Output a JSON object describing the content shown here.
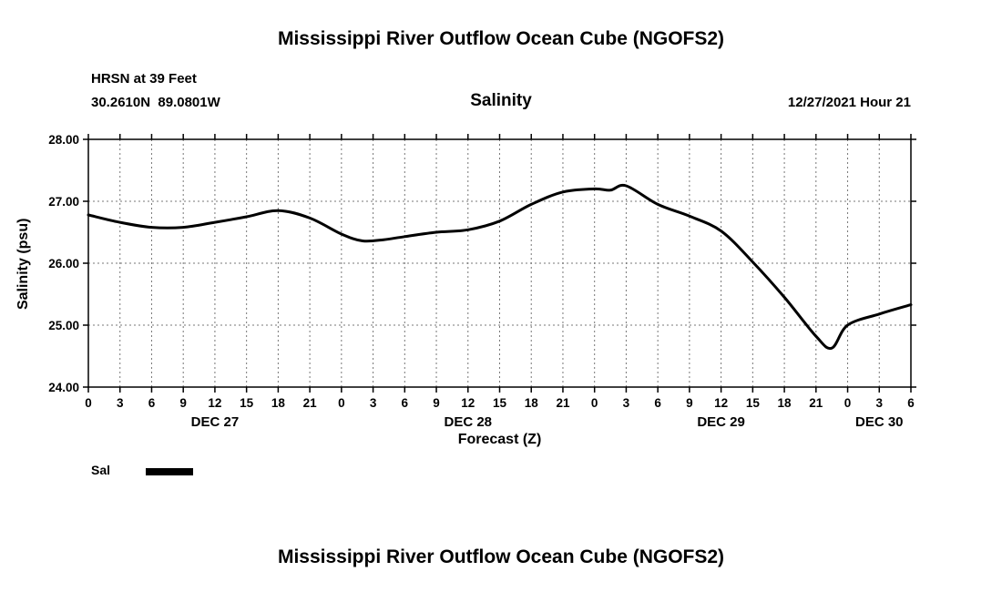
{
  "page": {
    "title_top": "Mississippi River Outflow Ocean Cube (NGOFS2)",
    "title_bottom": "Mississippi River Outflow Ocean Cube (NGOFS2)"
  },
  "subheader": {
    "station": "HRSN at 39 Feet",
    "coordinates": "30.2610N  89.0801W",
    "variable_label": "Salinity",
    "timestamp": "12/27/2021 Hour 21"
  },
  "legend": {
    "label": "Sal"
  },
  "chart_data": {
    "type": "line",
    "title": "Salinity",
    "xlabel": "Forecast (Z)",
    "ylabel": "Salinity (psu)",
    "ylim": [
      24,
      28
    ],
    "xlim": [
      0,
      78
    ],
    "grid": true,
    "legend_position": "below-left",
    "line_color": "#000000",
    "grid_color": "#777777",
    "y_tick_values": [
      24,
      25,
      26,
      27,
      28
    ],
    "y_tick_labels": [
      "24.00",
      "25.00",
      "26.00",
      "27.00",
      "28.00"
    ],
    "x_tick_values": [
      0,
      3,
      6,
      9,
      12,
      15,
      18,
      21,
      24,
      27,
      30,
      33,
      36,
      39,
      42,
      45,
      48,
      51,
      54,
      57,
      60,
      63,
      66,
      69,
      72,
      75,
      78
    ],
    "x_tick_labels": [
      "0",
      "3",
      "6",
      "9",
      "12",
      "15",
      "18",
      "21",
      "0",
      "3",
      "6",
      "9",
      "12",
      "15",
      "18",
      "21",
      "0",
      "3",
      "6",
      "9",
      "12",
      "15",
      "18",
      "21",
      "0",
      "3",
      "6"
    ],
    "day_labels": [
      {
        "label": "DEC 27",
        "hour": 12
      },
      {
        "label": "DEC 28",
        "hour": 36
      },
      {
        "label": "DEC 29",
        "hour": 60
      },
      {
        "label": "DEC 30",
        "hour": 75
      }
    ],
    "series": [
      {
        "name": "Sal",
        "x": [
          0,
          3,
          6,
          9,
          12,
          15,
          18,
          21,
          24,
          26,
          28,
          30,
          33,
          36,
          39,
          42,
          45,
          48,
          49.5,
          51,
          54,
          57,
          60,
          63,
          66,
          69,
          70.5,
          72,
          75,
          78
        ],
        "y": [
          26.78,
          26.66,
          26.58,
          26.58,
          26.66,
          26.75,
          26.85,
          26.73,
          26.47,
          26.36,
          26.38,
          26.43,
          26.5,
          26.54,
          26.68,
          26.95,
          27.15,
          27.2,
          27.18,
          27.25,
          26.95,
          26.76,
          26.52,
          26.02,
          25.45,
          24.82,
          24.63,
          25.0,
          25.18,
          25.33
        ]
      }
    ]
  }
}
